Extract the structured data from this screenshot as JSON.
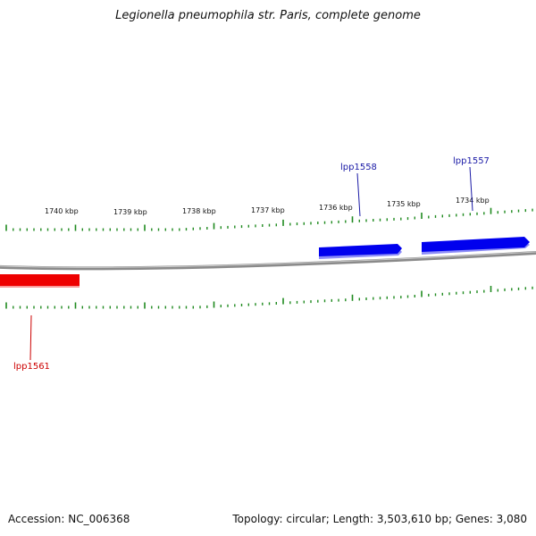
{
  "title": "Legionella pneumophila str. Paris, complete genome",
  "footer": {
    "accession": "Accession: NC_006368",
    "summary": "Topology: circular; Length: 3,503,610 bp; Genes: 3,080"
  },
  "colors": {
    "backbone": "#8a8a8a",
    "ticks": "#1f8a1f",
    "forward_gene": "#0000ee",
    "reverse_gene": "#ee0000",
    "forward_label": "#1a1aa6",
    "reverse_label": "#cc0000"
  },
  "scale_labels": [
    {
      "text": "1740 kbp",
      "kbp": 1740
    },
    {
      "text": "1739 kbp",
      "kbp": 1739
    },
    {
      "text": "1738 kbp",
      "kbp": 1738
    },
    {
      "text": "1737 kbp",
      "kbp": 1737
    },
    {
      "text": "1736 kbp",
      "kbp": 1736
    },
    {
      "text": "1735 kbp",
      "kbp": 1735
    },
    {
      "text": "1734 kbp",
      "kbp": 1734
    }
  ],
  "genes": [
    {
      "name": "lpp1558",
      "strand": "forward"
    },
    {
      "name": "lpp1557",
      "strand": "forward"
    },
    {
      "name": "lpp1561",
      "strand": "reverse"
    }
  ]
}
